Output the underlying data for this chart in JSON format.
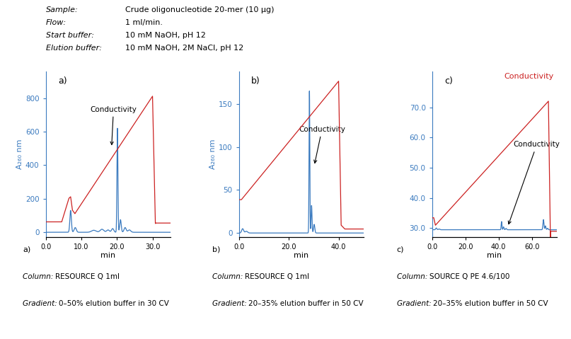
{
  "header": [
    [
      "Sample:",
      "Crude oligonucleotide 20-mer (10 µg)"
    ],
    [
      "Flow:",
      "1 ml/min."
    ],
    [
      "Start buffer:",
      "10 mM NaOH, pH 12"
    ],
    [
      "Elution buffer:",
      "10 mM NaOH, 2M NaCl, pH 12"
    ]
  ],
  "blue": "#3a7abf",
  "red": "#cc2222",
  "footers": [
    [
      "a)",
      "Column:  RESOURCE Q 1ml",
      "Gradient: 0–50% elution buffer in 30 CV"
    ],
    [
      "b)",
      "Column:  RESOURCE Q 1ml",
      "Gradient: 20–35% elution buffer in 50 CV"
    ],
    [
      "c)",
      "Column:  SOURCE Q PE 4.6/100",
      "Gradient: 20–35% elution buffer in 50 CV"
    ]
  ]
}
